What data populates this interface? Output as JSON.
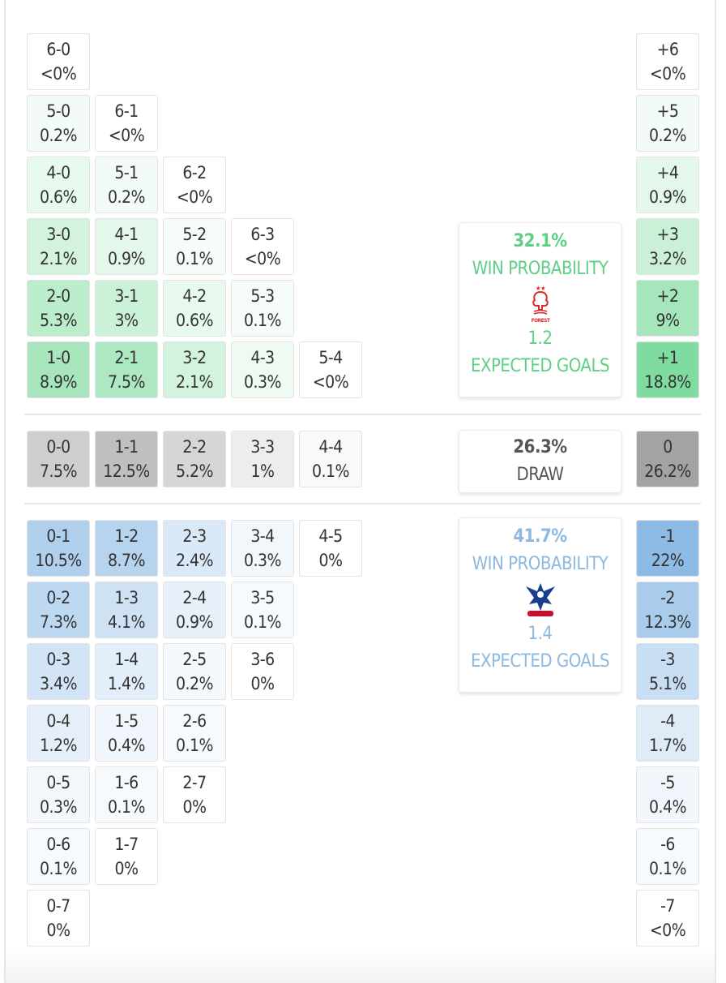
{
  "chart_data": {
    "type": "heatmap",
    "colors": {
      "home": "#7fdb9f",
      "draw": "#a3a3a3",
      "away": "#8dbbe6",
      "home_text": "#5fcf86",
      "away_text": "#8db8df",
      "draw_text": "#555555"
    },
    "home_rows": [
      [
        {
          "score": "6-0",
          "p": "<0%"
        }
      ],
      [
        {
          "score": "5-0",
          "p": "0.2%"
        },
        {
          "score": "6-1",
          "p": "<0%"
        }
      ],
      [
        {
          "score": "4-0",
          "p": "0.6%"
        },
        {
          "score": "5-1",
          "p": "0.2%"
        },
        {
          "score": "6-2",
          "p": "<0%"
        }
      ],
      [
        {
          "score": "3-0",
          "p": "2.1%"
        },
        {
          "score": "4-1",
          "p": "0.9%"
        },
        {
          "score": "5-2",
          "p": "0.1%"
        },
        {
          "score": "6-3",
          "p": "<0%"
        }
      ],
      [
        {
          "score": "2-0",
          "p": "5.3%"
        },
        {
          "score": "3-1",
          "p": "3%"
        },
        {
          "score": "4-2",
          "p": "0.6%"
        },
        {
          "score": "5-3",
          "p": "0.1%"
        }
      ],
      [
        {
          "score": "1-0",
          "p": "8.9%"
        },
        {
          "score": "2-1",
          "p": "7.5%"
        },
        {
          "score": "3-2",
          "p": "2.1%"
        },
        {
          "score": "4-3",
          "p": "0.3%"
        },
        {
          "score": "5-4",
          "p": "<0%"
        }
      ]
    ],
    "draw_row": [
      {
        "score": "0-0",
        "p": "7.5%"
      },
      {
        "score": "1-1",
        "p": "12.5%"
      },
      {
        "score": "2-2",
        "p": "5.2%"
      },
      {
        "score": "3-3",
        "p": "1%"
      },
      {
        "score": "4-4",
        "p": "0.1%"
      }
    ],
    "away_rows": [
      [
        {
          "score": "0-1",
          "p": "10.5%"
        },
        {
          "score": "1-2",
          "p": "8.7%"
        },
        {
          "score": "2-3",
          "p": "2.4%"
        },
        {
          "score": "3-4",
          "p": "0.3%"
        },
        {
          "score": "4-5",
          "p": "0%"
        }
      ],
      [
        {
          "score": "0-2",
          "p": "7.3%"
        },
        {
          "score": "1-3",
          "p": "4.1%"
        },
        {
          "score": "2-4",
          "p": "0.9%"
        },
        {
          "score": "3-5",
          "p": "0.1%"
        }
      ],
      [
        {
          "score": "0-3",
          "p": "3.4%"
        },
        {
          "score": "1-4",
          "p": "1.4%"
        },
        {
          "score": "2-5",
          "p": "0.2%"
        },
        {
          "score": "3-6",
          "p": "0%"
        }
      ],
      [
        {
          "score": "0-4",
          "p": "1.2%"
        },
        {
          "score": "1-5",
          "p": "0.4%"
        },
        {
          "score": "2-6",
          "p": "0.1%"
        }
      ],
      [
        {
          "score": "0-5",
          "p": "0.3%"
        },
        {
          "score": "1-6",
          "p": "0.1%"
        },
        {
          "score": "2-7",
          "p": "0%"
        }
      ],
      [
        {
          "score": "0-6",
          "p": "0.1%"
        },
        {
          "score": "1-7",
          "p": "0%"
        }
      ],
      [
        {
          "score": "0-7",
          "p": "0%"
        }
      ]
    ],
    "margins_home": [
      {
        "m": "+6",
        "p": "<0%"
      },
      {
        "m": "+5",
        "p": "0.2%"
      },
      {
        "m": "+4",
        "p": "0.9%"
      },
      {
        "m": "+3",
        "p": "3.2%"
      },
      {
        "m": "+2",
        "p": "9%"
      },
      {
        "m": "+1",
        "p": "18.8%"
      }
    ],
    "margin_draw": {
      "m": "0",
      "p": "26.2%"
    },
    "margins_away": [
      {
        "m": "-1",
        "p": "22%"
      },
      {
        "m": "-2",
        "p": "12.3%"
      },
      {
        "m": "-3",
        "p": "5.1%"
      },
      {
        "m": "-4",
        "p": "1.7%"
      },
      {
        "m": "-5",
        "p": "0.4%"
      },
      {
        "m": "-6",
        "p": "0.1%"
      },
      {
        "m": "-7",
        "p": "<0%"
      }
    ]
  },
  "home_summary": {
    "win_pct": "32.1%",
    "win_label": "WIN PROBABILITY",
    "xg": "1.2",
    "xg_label": "EXPECTED GOALS",
    "crest": "nottingham-forest-crest"
  },
  "draw_summary": {
    "pct": "26.3%",
    "label": "DRAW"
  },
  "away_summary": {
    "win_pct": "41.7%",
    "win_label": "WIN PROBABILITY",
    "xg": "1.4",
    "xg_label": "EXPECTED GOALS",
    "crest": "crystal-palace-crest"
  }
}
